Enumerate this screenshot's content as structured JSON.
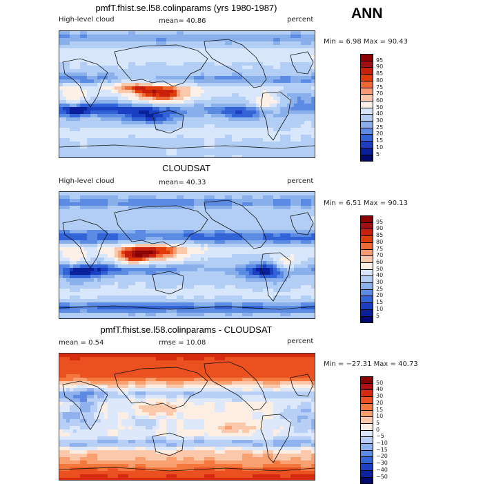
{
  "season": "ANN",
  "panels": [
    {
      "title": "pmfT.fhist.se.l58.colinparams (yrs 1980-1987)",
      "left_label": "High-level cloud",
      "center_label": "mean=  40.86",
      "right_label": "percent",
      "minmax": "Min =    6.98  Max =   90.43",
      "colorbar": {
        "levels": [
          "95",
          "90",
          "85",
          "80",
          "75",
          "70",
          "60",
          "50",
          "40",
          "30",
          "25",
          "20",
          "15",
          "10",
          "5"
        ],
        "colors": [
          "#8b0000",
          "#a01010",
          "#c8200a",
          "#e03c0a",
          "#ef6a32",
          "#f79b74",
          "#fcc8ac",
          "#fdf0e6",
          "#d7e6fb",
          "#b2cef5",
          "#8ab0ec",
          "#5b8be3",
          "#3264d8",
          "#1a3fc2",
          "#0a1f9a",
          "#020a6e"
        ]
      },
      "map_type": "model"
    },
    {
      "title": "CLOUDSAT",
      "left_label": "High-level cloud",
      "center_label": "mean=  40.33",
      "right_label": "percent",
      "minmax": "Min =    6.51  Max =   90.13",
      "colorbar": {
        "levels": [
          "95",
          "90",
          "85",
          "80",
          "75",
          "70",
          "60",
          "50",
          "40",
          "30",
          "25",
          "20",
          "15",
          "10",
          "5"
        ],
        "colors": [
          "#8b0000",
          "#a01010",
          "#c8200a",
          "#e03c0a",
          "#ef6a32",
          "#f79b74",
          "#fcc8ac",
          "#fdf0e6",
          "#d7e6fb",
          "#b2cef5",
          "#8ab0ec",
          "#5b8be3",
          "#3264d8",
          "#1a3fc2",
          "#0a1f9a",
          "#020a6e"
        ]
      },
      "map_type": "obs"
    },
    {
      "title": "pmfT.fhist.se.l58.colinparams - CLOUDSAT",
      "left_label": "mean =    0.54",
      "center_label": "rmse =   10.08",
      "right_label": "percent",
      "minmax": "Min = −27.31  Max =   40.73",
      "colorbar": {
        "levels": [
          "50",
          "40",
          "30",
          "20",
          "15",
          "10",
          "5",
          "0",
          "−5",
          "−10",
          "−15",
          "−20",
          "−30",
          "−40",
          "−50"
        ],
        "colors": [
          "#8b0000",
          "#b01010",
          "#d52a0e",
          "#ea5020",
          "#f4773e",
          "#f9a070",
          "#fcc8ac",
          "#fdeee4",
          "#dde8fa",
          "#b8d0f5",
          "#8fb2ee",
          "#5d8ae2",
          "#3465d6",
          "#1c40c4",
          "#0c22a0",
          "#020a6e"
        ]
      },
      "map_type": "diff"
    }
  ]
}
